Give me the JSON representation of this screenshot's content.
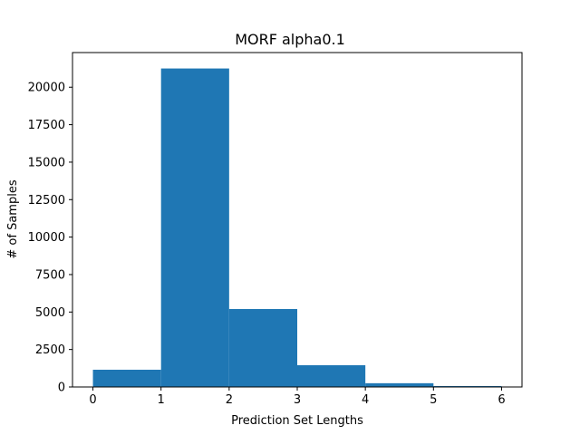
{
  "chart_data": {
    "type": "bar",
    "title": "MORF alpha0.1",
    "xlabel": "Prediction Set Lengths",
    "ylabel": "# of Samples",
    "bins": [
      {
        "x0": 0,
        "x1": 1,
        "value": 1150
      },
      {
        "x0": 1,
        "x1": 2,
        "value": 21250
      },
      {
        "x0": 2,
        "x1": 3,
        "value": 5200
      },
      {
        "x0": 3,
        "x1": 4,
        "value": 1450
      },
      {
        "x0": 4,
        "x1": 5,
        "value": 250
      },
      {
        "x0": 5,
        "x1": 6,
        "value": 60
      }
    ],
    "xlim": [
      -0.3,
      6.3
    ],
    "ylim": [
      0,
      22312
    ],
    "xticks": [
      0,
      1,
      2,
      3,
      4,
      5,
      6
    ],
    "yticks": [
      0,
      2500,
      5000,
      7500,
      10000,
      12500,
      15000,
      17500,
      20000
    ],
    "bar_color": "#1f77b4",
    "grid": false,
    "legend": "none"
  }
}
